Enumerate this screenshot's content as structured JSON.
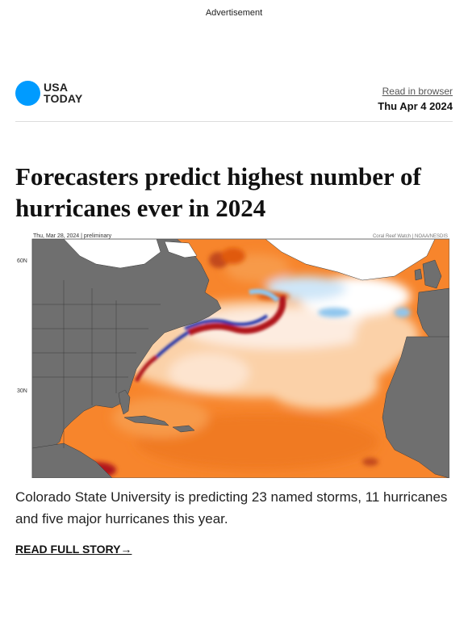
{
  "advertisement": "Advertisement",
  "header": {
    "logo_line1": "USA",
    "logo_line2": "TODAY",
    "read_in_browser": "Read in browser",
    "date": "Thu Apr 4 2024"
  },
  "article": {
    "headline": "Forecasters predict highest number of hurricanes ever in 2024",
    "image": {
      "type": "sea surface temperature anomaly map",
      "top_left_text": "Thu, Mar 28, 2024 | preliminary",
      "top_right_text": "Coral Reef Watch | NOAA/NESDIS",
      "lat_labels": [
        "60N",
        "30N"
      ],
      "colors": {
        "land": "#6f6f6f",
        "warm_light": "#fbd1a8",
        "warm": "#f7852c",
        "hot": "#e05a10",
        "very_hot": "#b0181a",
        "cool": "#8fc6ee",
        "cold": "#1d2fa8",
        "ice": "#ffffff"
      }
    },
    "caption": "Colorado State University is predicting 23 named storms, 11 hurricanes and five major hurricanes this year.",
    "read_full_story": "READ FULL STORY→"
  }
}
